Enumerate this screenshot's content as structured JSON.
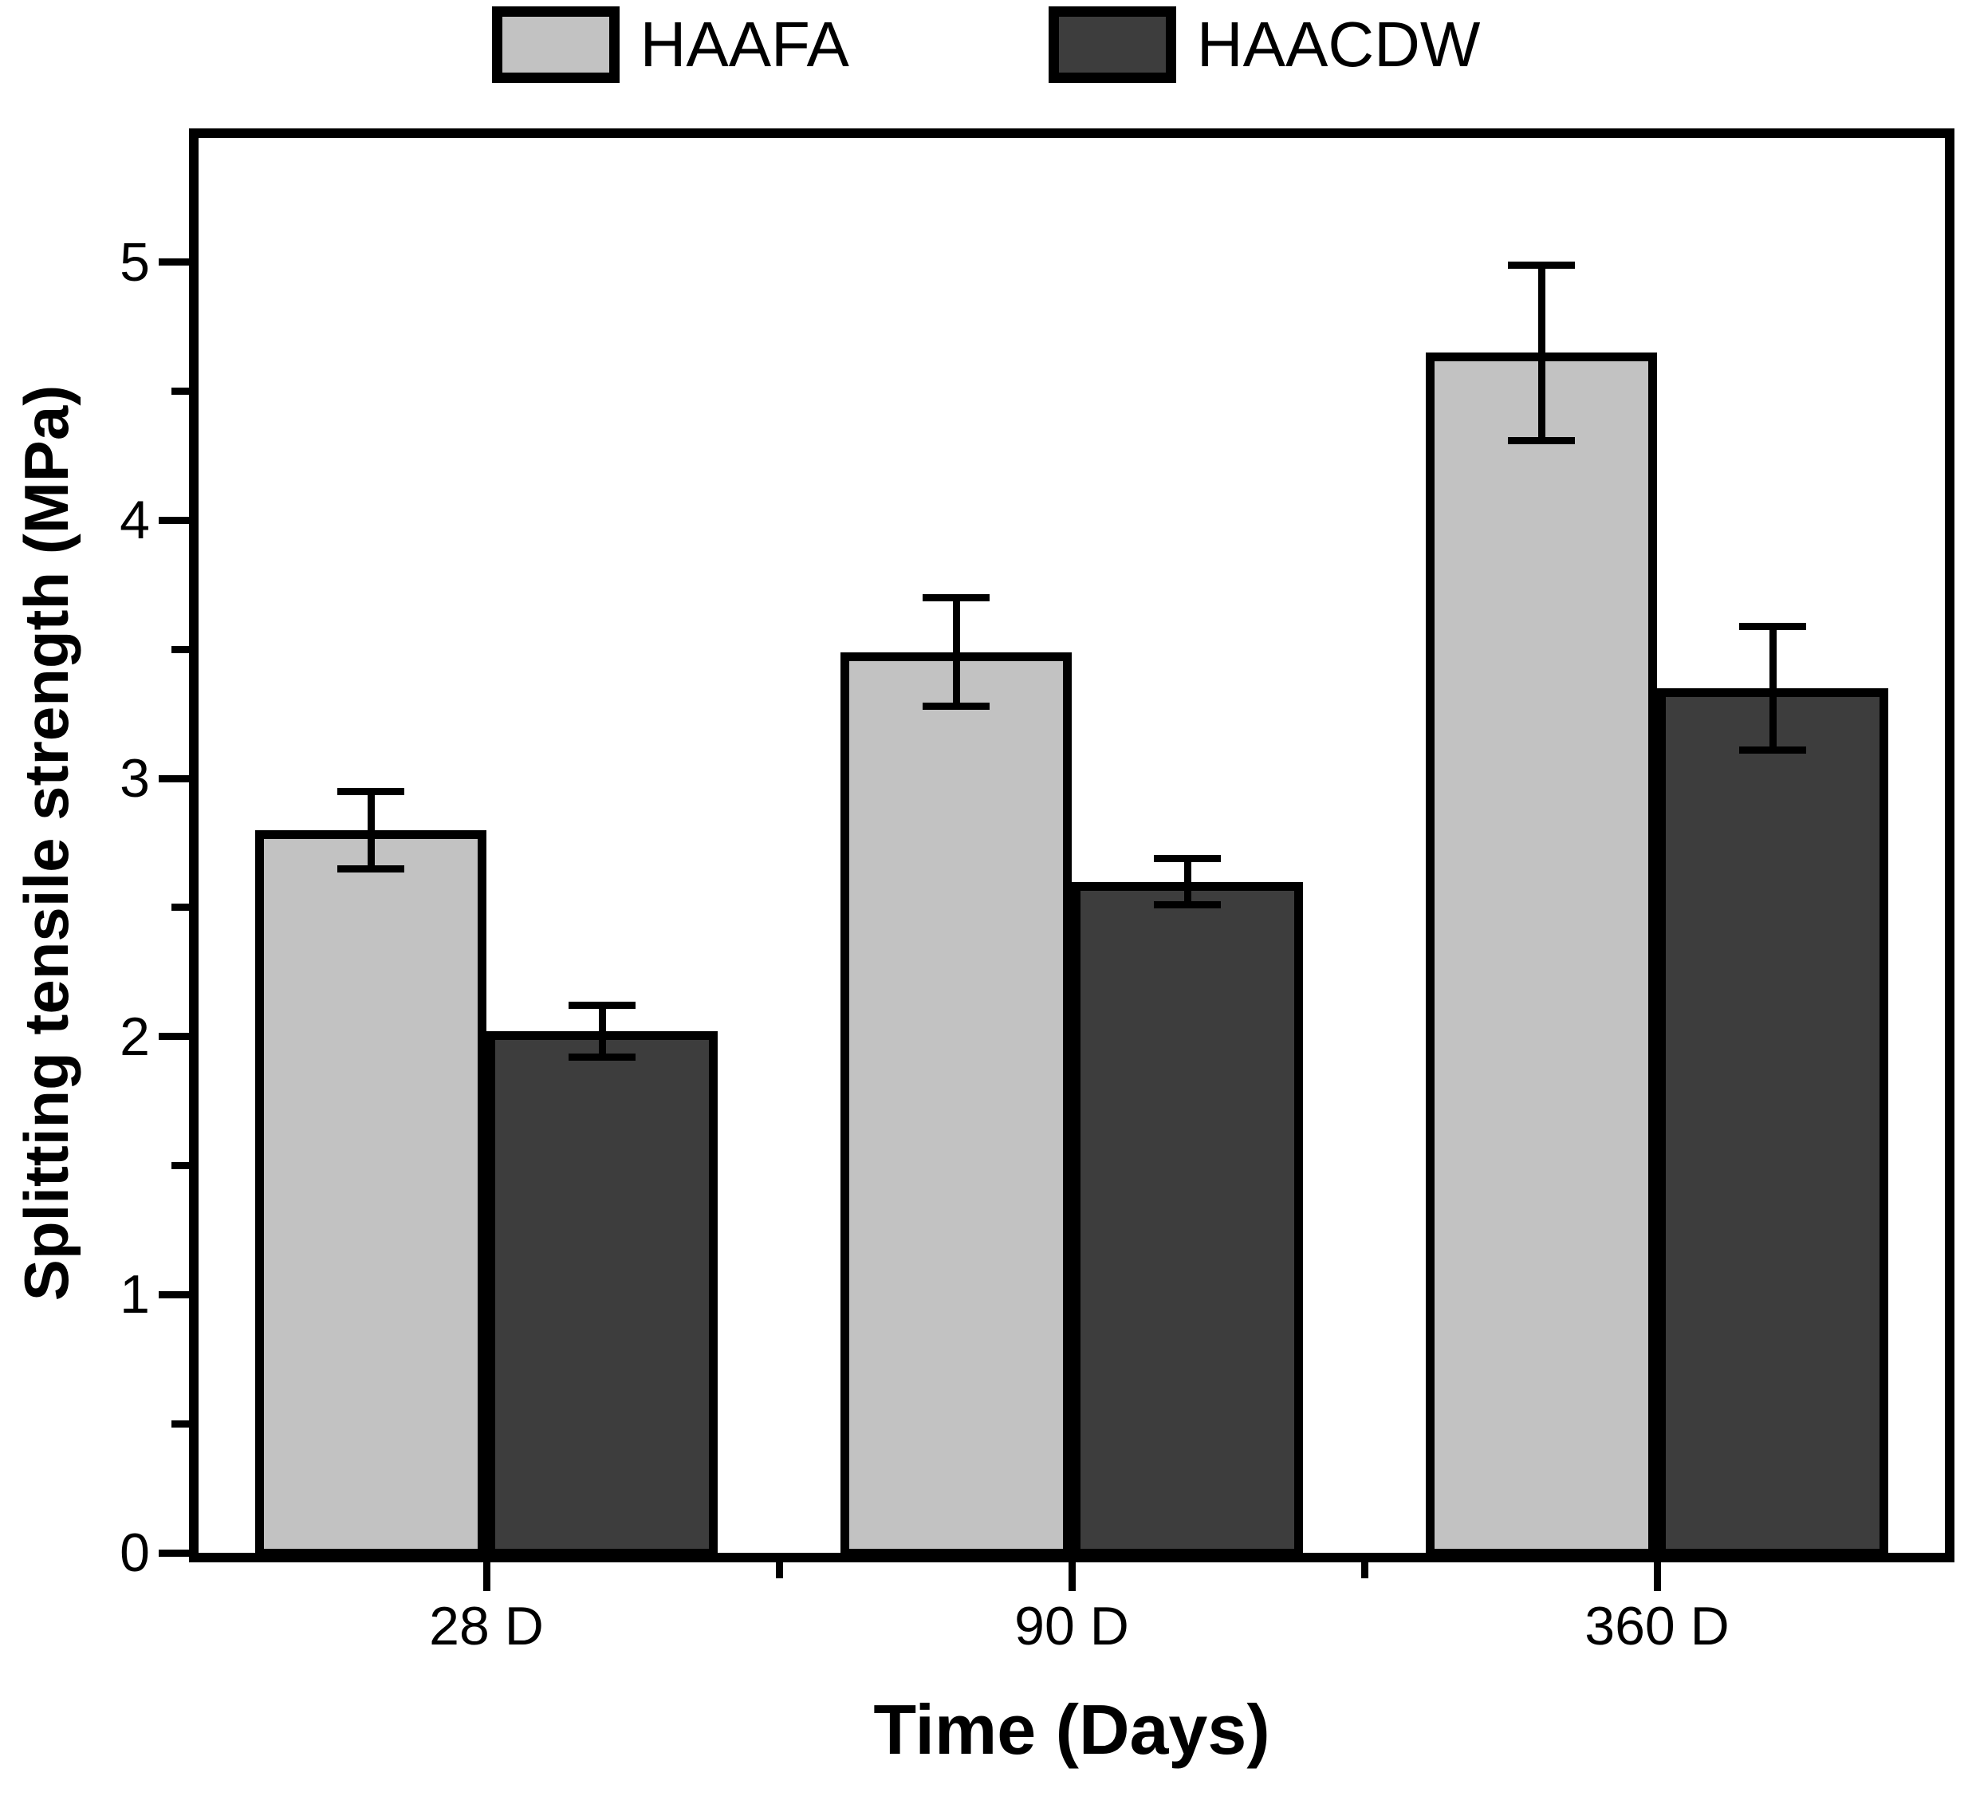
{
  "chart_data": {
    "type": "bar",
    "title": "",
    "categories": [
      "28 D",
      "90 D",
      "360 D"
    ],
    "series": [
      {
        "name": "HAAFA",
        "color": "#c2c2c2",
        "values": [
          2.8,
          3.49,
          4.65
        ],
        "errors": [
          0.15,
          0.21,
          0.34
        ]
      },
      {
        "name": "HAACDW",
        "color": "#3d3d3d",
        "values": [
          2.02,
          2.6,
          3.35
        ],
        "errors": [
          0.1,
          0.09,
          0.24
        ]
      }
    ],
    "xlabel": "Time (Days)",
    "ylabel": "Splitting tensile strength (MPa)",
    "ylim": [
      0,
      5.5
    ],
    "y_major_ticks": [
      "0",
      "1",
      "2",
      "3",
      "4",
      "5"
    ],
    "y_minor_step": 0.5,
    "grid": false,
    "legend_position": "top-center",
    "bar_edge_color": "#000000",
    "error_bar_color": "#000000",
    "background": "#ffffff"
  }
}
